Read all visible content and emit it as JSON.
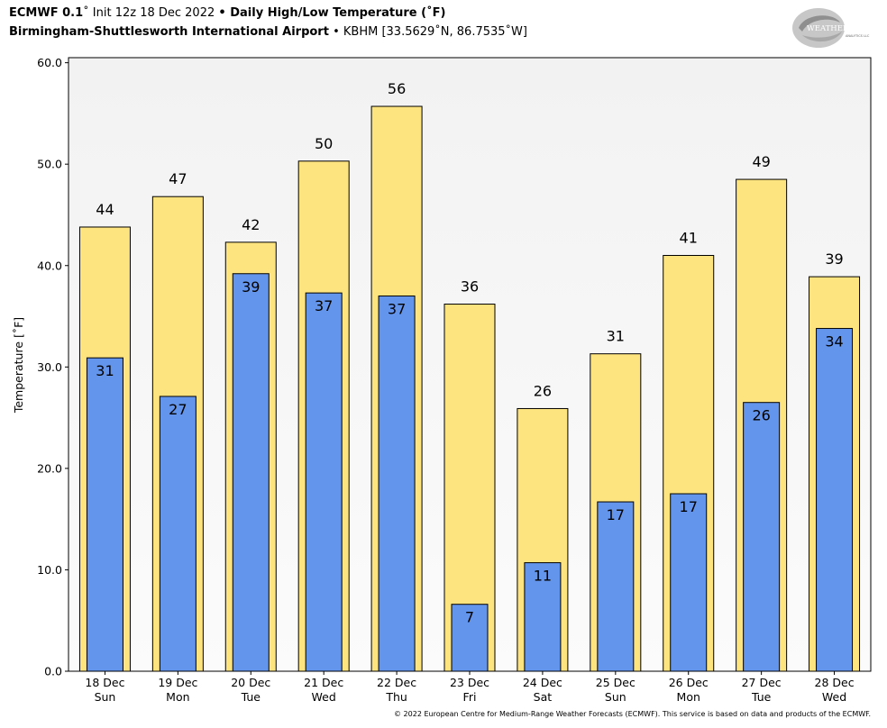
{
  "header": {
    "model": "ECMWF 0.1",
    "init_text": "Init 12z 18 Dec 2022",
    "product": "Daily High/Low Temperature (˚F)",
    "station_name": "Birmingham-Shuttlesworth International Airport",
    "station_info": "KBHM [33.5629˚N, 86.7535˚W]"
  },
  "logo": {
    "text": "WEATHERBELL",
    "subtext": "ANALYTICS LLC"
  },
  "footer": "© 2022 European Centre for Medium-Range Weather Forecasts (ECMWF). This service is based on data and products of the ECMWF.",
  "colors": {
    "high": "#FDE47F",
    "low": "#6495ED",
    "plot_background_top": "#F2F2F2",
    "plot_background_bottom": "#FBFBFB"
  },
  "chart_data": {
    "type": "bar",
    "ylabel": "Temperature [˚F]",
    "ylim": [
      0,
      60.5
    ],
    "yticks": [
      "0.0",
      "10.0",
      "20.0",
      "30.0",
      "40.0",
      "50.0",
      "60.0"
    ],
    "categories": [
      [
        "18 Dec",
        "Sun"
      ],
      [
        "19 Dec",
        "Mon"
      ],
      [
        "20 Dec",
        "Tue"
      ],
      [
        "21 Dec",
        "Wed"
      ],
      [
        "22 Dec",
        "Thu"
      ],
      [
        "23 Dec",
        "Fri"
      ],
      [
        "24 Dec",
        "Sat"
      ],
      [
        "25 Dec",
        "Sun"
      ],
      [
        "26 Dec",
        "Mon"
      ],
      [
        "27 Dec",
        "Tue"
      ],
      [
        "28 Dec",
        "Wed"
      ]
    ],
    "series": [
      {
        "values": [
          43.8,
          46.8,
          42.3,
          50.3,
          55.7,
          36.2,
          25.9,
          31.3,
          41.0,
          48.5,
          38.9
        ],
        "labels": [
          "44",
          "47",
          "42",
          "50",
          "56",
          "36",
          "26",
          "31",
          "41",
          "49",
          "39"
        ]
      },
      {
        "values": [
          30.9,
          27.1,
          39.2,
          37.3,
          37.0,
          6.6,
          10.7,
          16.7,
          17.5,
          26.5,
          33.8
        ],
        "labels": [
          "31",
          "27",
          "39",
          "37",
          "37",
          "7",
          "11",
          "17",
          "17",
          "26",
          "34"
        ]
      }
    ],
    "grid": false,
    "legend": "none"
  }
}
